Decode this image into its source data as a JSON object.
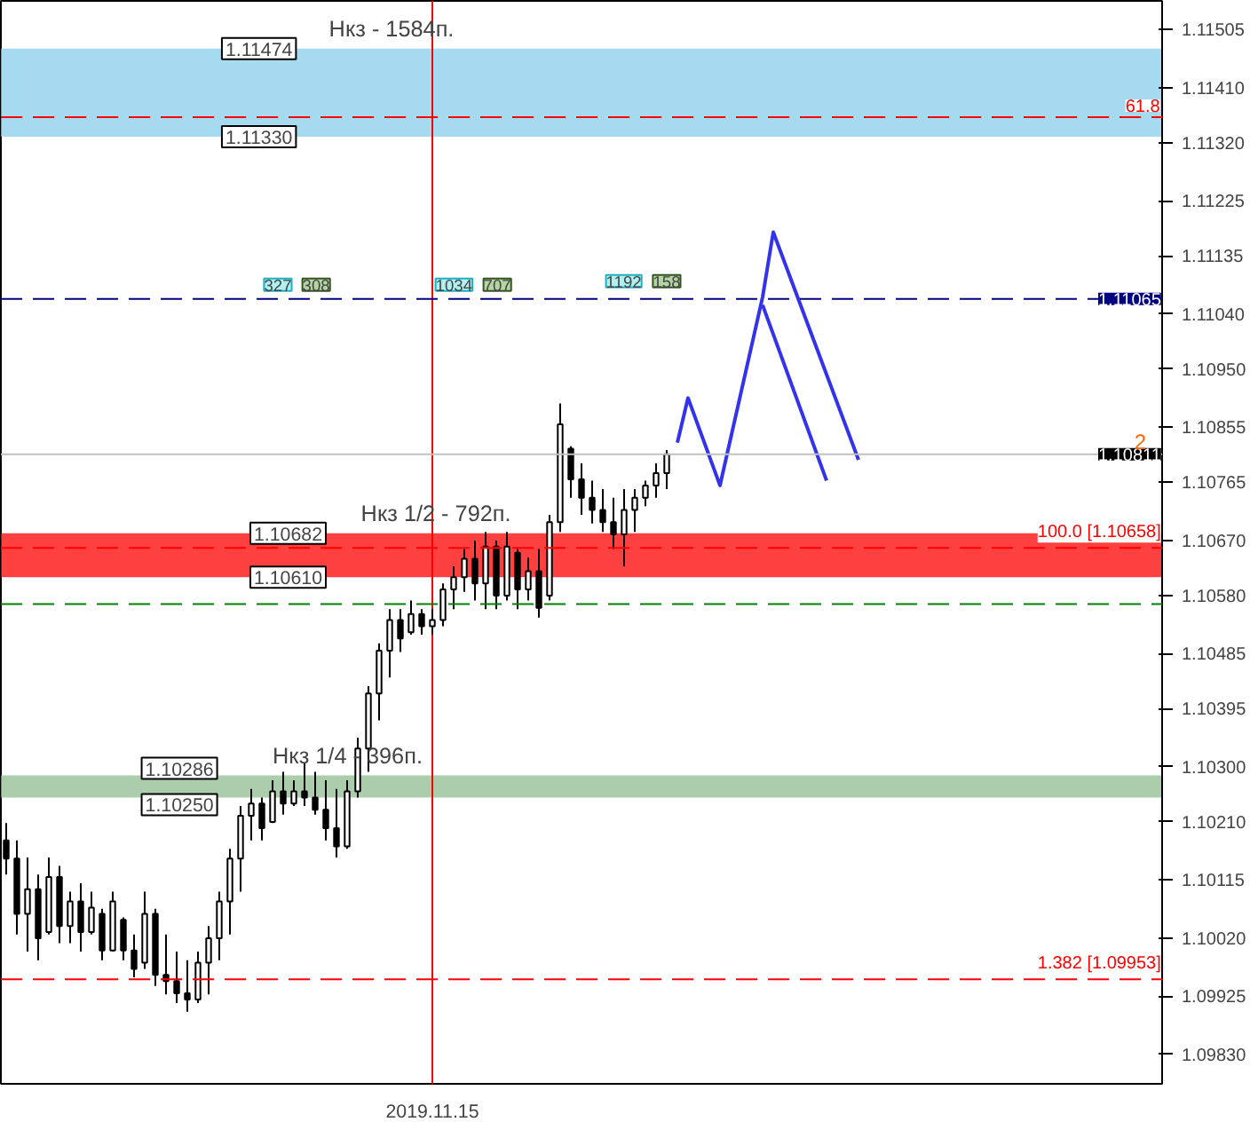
{
  "chart_data": {
    "type": "candlestick",
    "categories": [
      null,
      null,
      null,
      null,
      null,
      null,
      null,
      null,
      null,
      null,
      null,
      null,
      null,
      null,
      null,
      null,
      null,
      null,
      null,
      null,
      null,
      null,
      null,
      null,
      null,
      null,
      null,
      null,
      null,
      null,
      null,
      null,
      null,
      null,
      null,
      null,
      null,
      null,
      null,
      null,
      "2019.11.15",
      null,
      null,
      null,
      null,
      null,
      null,
      null,
      null,
      null,
      null,
      null,
      null,
      null,
      null,
      null,
      null,
      null,
      null,
      null,
      null,
      null,
      null,
      null,
      null,
      null,
      null,
      null,
      null,
      null,
      null,
      null,
      null,
      null,
      null,
      null,
      null,
      null,
      null,
      null,
      null,
      null,
      null,
      null,
      null,
      null,
      null,
      null,
      null,
      null,
      null,
      null,
      null,
      null,
      null,
      null,
      null,
      null,
      null,
      null,
      null,
      null,
      null,
      null,
      null,
      null,
      null,
      null,
      null
    ],
    "ohlc": [
      [
        1.1018,
        1.10208,
        1.10124,
        1.1015
      ],
      [
        1.1015,
        1.1018,
        1.10026,
        1.1006
      ],
      [
        1.1006,
        1.10152,
        1.09998,
        1.101
      ],
      [
        1.101,
        1.10124,
        1.09984,
        1.1002
      ],
      [
        1.1003,
        1.10152,
        1.10026,
        1.1012
      ],
      [
        1.1012,
        1.10138,
        1.10012,
        1.1004
      ],
      [
        1.1004,
        1.10096,
        1.10012,
        1.1008
      ],
      [
        1.1008,
        1.1011,
        1.09998,
        1.1003
      ],
      [
        1.1003,
        1.10096,
        1.10026,
        1.1007
      ],
      [
        1.1006,
        1.10068,
        1.09984,
        1.1
      ],
      [
        1.1,
        1.10096,
        1.09998,
        1.1008
      ],
      [
        1.1005,
        1.10054,
        1.09984,
        1.1
      ],
      [
        1.1,
        1.10026,
        1.09956,
        1.0997
      ],
      [
        1.0998,
        1.10096,
        1.0997,
        1.1006
      ],
      [
        1.1006,
        1.10068,
        1.09942,
        1.0996
      ],
      [
        1.0996,
        1.10026,
        1.09928,
        1.0995
      ],
      [
        1.0995,
        1.09998,
        1.09914,
        1.0993
      ],
      [
        1.0993,
        1.09984,
        1.099,
        1.0992
      ],
      [
        1.0992,
        1.09998,
        1.09914,
        1.0998
      ],
      [
        1.0998,
        1.1004,
        1.09928,
        1.1002
      ],
      [
        1.1002,
        1.10096,
        1.09984,
        1.1008
      ],
      [
        1.1008,
        1.10166,
        1.10026,
        1.1015
      ],
      [
        1.1015,
        1.10236,
        1.10096,
        1.1022
      ],
      [
        1.1022,
        1.10264,
        1.1018,
        1.1024
      ],
      [
        1.1024,
        1.1025,
        1.1018,
        1.102
      ],
      [
        1.1021,
        1.10278,
        1.10208,
        1.1026
      ],
      [
        1.1026,
        1.10292,
        1.10222,
        1.1024
      ],
      [
        1.1024,
        1.10278,
        1.10236,
        1.1026
      ],
      [
        1.1026,
        1.10306,
        1.10236,
        1.1025
      ],
      [
        1.1025,
        1.10292,
        1.10222,
        1.1023
      ],
      [
        1.1023,
        1.10278,
        1.1018,
        1.102
      ],
      [
        1.102,
        1.10264,
        1.10152,
        1.1017
      ],
      [
        1.1017,
        1.10278,
        1.10166,
        1.1026
      ],
      [
        1.1026,
        1.10348,
        1.1025,
        1.1033
      ],
      [
        1.1033,
        1.10432,
        1.10292,
        1.1042
      ],
      [
        1.1042,
        1.10502,
        1.10376,
        1.1049
      ],
      [
        1.1049,
        1.10558,
        1.10446,
        1.1054
      ],
      [
        1.1054,
        1.10558,
        1.10488,
        1.1051
      ],
      [
        1.1052,
        1.10572,
        1.10516,
        1.1055
      ],
      [
        1.1055,
        1.10558,
        1.10516,
        1.1053
      ],
      [
        1.1053,
        1.10558,
        1.10516,
        1.1054
      ],
      [
        1.1054,
        1.106,
        1.1053,
        1.1059
      ],
      [
        1.1059,
        1.10628,
        1.10558,
        1.1061
      ],
      [
        1.1061,
        1.10656,
        1.10586,
        1.1064
      ],
      [
        1.1064,
        1.1067,
        1.10572,
        1.106
      ],
      [
        1.106,
        1.10684,
        1.10558,
        1.1066
      ],
      [
        1.1066,
        1.1067,
        1.10558,
        1.1058
      ],
      [
        1.1058,
        1.10684,
        1.10572,
        1.1066
      ],
      [
        1.1065,
        1.10656,
        1.10558,
        1.1059
      ],
      [
        1.1059,
        1.10642,
        1.10572,
        1.1062
      ],
      [
        1.1062,
        1.10656,
        1.10544,
        1.1056
      ],
      [
        1.1058,
        1.10712,
        1.10572,
        1.107
      ],
      [
        1.107,
        1.10894,
        1.10684,
        1.1086
      ],
      [
        1.1082,
        1.10824,
        1.1074,
        1.1077
      ],
      [
        1.1077,
        1.10796,
        1.10712,
        1.1074
      ],
      [
        1.1074,
        1.10768,
        1.10698,
        1.1072
      ],
      [
        1.1072,
        1.10754,
        1.10684,
        1.107
      ],
      [
        1.107,
        1.1074,
        1.10656,
        1.1068
      ],
      [
        1.1068,
        1.10754,
        1.10628,
        1.1072
      ],
      [
        1.1072,
        1.10754,
        1.10684,
        1.1074
      ],
      [
        1.1074,
        1.10768,
        1.10726,
        1.1076
      ],
      [
        1.1076,
        1.10796,
        1.1074,
        1.1078
      ],
      [
        1.1078,
        1.10818,
        1.10754,
        1.10811
      ],
      null,
      null,
      null,
      null,
      null,
      null,
      null,
      null,
      null,
      null,
      null,
      null,
      null,
      null,
      null,
      null,
      null,
      null,
      null,
      null,
      null,
      null,
      null,
      null,
      null,
      null,
      null,
      null,
      null,
      null,
      null,
      null,
      null,
      null,
      null,
      null,
      null,
      null,
      null,
      null,
      null,
      null,
      null,
      null,
      null,
      null
    ],
    "color": "#000000",
    "series": [
      {
        "type": "line",
        "color": "#3333ee",
        "values": [
          null,
          null,
          null,
          null,
          null,
          null,
          null,
          null,
          null,
          null,
          null,
          null,
          null,
          null,
          null,
          null,
          null,
          null,
          null,
          null,
          null,
          null,
          null,
          null,
          null,
          null,
          null,
          null,
          null,
          null,
          null,
          null,
          null,
          null,
          null,
          null,
          null,
          null,
          null,
          null,
          null,
          null,
          null,
          null,
          null,
          null,
          null,
          null,
          null,
          null,
          null,
          null,
          null,
          null,
          null,
          null,
          null,
          null,
          null,
          null,
          null,
          null,
          null,
          1.1083,
          1.10903,
          null,
          null,
          1.1076,
          null,
          null,
          null,
          1.11068,
          1.11174,
          null,
          null,
          null,
          null,
          null,
          null,
          null,
          1.10802,
          null,
          null,
          null,
          null,
          null,
          null,
          null,
          null,
          null,
          null,
          null,
          null,
          null,
          null,
          null,
          null,
          null,
          null,
          null,
          null,
          null,
          null,
          null,
          null,
          null,
          null,
          null,
          null
        ]
      },
      {
        "type": "line",
        "color": "#3333ee",
        "values": [
          null,
          null,
          null,
          null,
          null,
          null,
          null,
          null,
          null,
          null,
          null,
          null,
          null,
          null,
          null,
          null,
          null,
          null,
          null,
          null,
          null,
          null,
          null,
          null,
          null,
          null,
          null,
          null,
          null,
          null,
          null,
          null,
          null,
          null,
          null,
          null,
          null,
          null,
          null,
          null,
          null,
          null,
          null,
          null,
          null,
          null,
          null,
          null,
          null,
          null,
          null,
          null,
          null,
          null,
          null,
          null,
          null,
          null,
          null,
          null,
          null,
          null,
          null,
          null,
          null,
          null,
          null,
          null,
          null,
          null,
          null,
          1.11055,
          null,
          null,
          null,
          null,
          null,
          1.10768,
          null,
          null,
          null,
          null,
          null,
          null,
          null,
          null,
          null,
          null,
          null,
          null,
          null,
          null,
          null,
          null,
          null,
          null,
          null,
          null,
          null,
          null,
          null,
          null,
          null,
          null,
          null,
          null,
          null,
          null,
          null
        ]
      }
    ],
    "ylim": [
      1.09782,
      1.11552
    ],
    "yticks": [
      1.11505,
      {
        "value": 1.1141,
        "label": "1.11410"
      },
      {
        "value": 1.1132,
        "label": "1.11320"
      },
      1.11225,
      1.11135,
      {
        "value": 1.1104,
        "label": "1.11040"
      },
      {
        "value": 1.1095,
        "label": "1.10950"
      },
      1.10855,
      1.10765,
      {
        "value": 1.1067,
        "label": "1.10670"
      },
      {
        "value": 1.1058,
        "label": "1.10580"
      },
      1.10485,
      1.10395,
      {
        "value": 1.103,
        "label": "1.10300"
      },
      {
        "value": 1.1021,
        "label": "1.10210"
      },
      1.10115,
      {
        "value": 1.1002,
        "label": "1.10020"
      },
      1.09925,
      {
        "value": 1.0983,
        "label": "1.09830"
      }
    ],
    "bands": [
      {
        "axis": "y",
        "from": 1.1133,
        "to": 1.11474,
        "color": "#87ceeb"
      },
      {
        "axis": "y",
        "from": 1.1061,
        "to": 1.10682,
        "color": "#ff0000"
      },
      {
        "axis": "y",
        "from": 1.1025,
        "to": 1.10286,
        "color": "#8fbc8f"
      }
    ],
    "ref_lines": [
      {
        "axis": "y",
        "value": 1.11362,
        "color": "#ff0000",
        "line_style": "dashed"
      },
      {
        "axis": "y",
        "value": 1.11065,
        "label": "1.11065",
        "color": "#000080",
        "line_style": "dashed"
      },
      {
        "axis": "y",
        "value": 1.10811,
        "label": "1.10811",
        "color": "#c0c0c0",
        "line_style": "solid"
      },
      {
        "axis": "y",
        "value": 1.10658,
        "label": "100.0 [1.10658]",
        "color": "#ff0000",
        "line_style": "dashed"
      },
      {
        "axis": "y",
        "value": 1.10566,
        "color": "#008000",
        "line_style": "dashed"
      },
      {
        "axis": "y",
        "value": 1.09953,
        "label": "1.382 [1.09953]",
        "color": "#ff0000",
        "line_style": "dashed"
      },
      {
        "axis": "x",
        "value": "2019.11.15",
        "color": "#ff0000",
        "line_style": "solid"
      }
    ],
    "annotations": [
      {
        "text": "Нкз - 1584п.",
        "y": 1.11474
      },
      {
        "text": "1.11474",
        "y": 1.11474
      },
      {
        "text": "1.11330",
        "y": 1.1133
      },
      {
        "text": "Нкз 1/2 - 792п.",
        "y": 1.10682
      },
      {
        "text": "1.10682",
        "y": 1.10682
      },
      {
        "text": "1.10610",
        "y": 1.1061
      },
      {
        "text": "Нкз 1/4 - 396п.",
        "y": 1.10286
      },
      {
        "text": "1.10286",
        "y": 1.10286
      },
      {
        "text": "1.10250",
        "y": 1.1025
      },
      {
        "text": "327",
        "y": 1.11088
      },
      {
        "text": "308",
        "y": 1.11088
      },
      {
        "text": "1034",
        "y": 1.11088
      },
      {
        "text": "707",
        "y": 1.11088
      },
      {
        "text": "1192",
        "y": 1.11094
      },
      {
        "text": "158",
        "y": 1.11094
      },
      {
        "text": "2",
        "y": 1.10811
      },
      {
        "text": "61.8",
        "y": 1.11362
      }
    ],
    "grid": false
  }
}
